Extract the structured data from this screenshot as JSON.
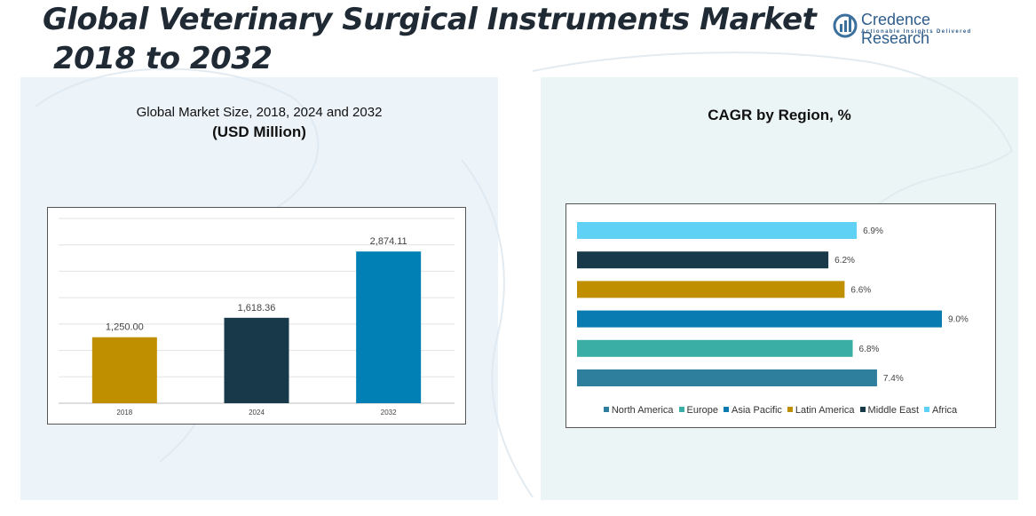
{
  "title_line1": "Global Veterinary Surgical Instruments Market",
  "title_line2": "2018 to 2032",
  "logo": {
    "brand": "Credence Research",
    "tagline": "Actionable Insights Delivered",
    "icon": "logo-icon"
  },
  "left_chart": {
    "subtitle": "Global Market Size, 2018, 2024 and 2032",
    "units": "(USD Million)"
  },
  "right_chart": {
    "title": "CAGR by Region, %"
  },
  "chart_data": [
    {
      "type": "bar",
      "title": "Global Market Size, 2018, 2024 and 2032",
      "ylabel": "(USD Million)",
      "categories": [
        "2018",
        "2024",
        "2032"
      ],
      "values": [
        1250.0,
        1618.36,
        2874.11
      ],
      "labels": [
        "1,250.00",
        "1,618.36",
        "2,874.11"
      ],
      "colors": [
        "#bf8f00",
        "#17394a",
        "#0080b4"
      ],
      "ylim": [
        0,
        3500
      ],
      "grid": true
    },
    {
      "type": "bar",
      "orientation": "horizontal",
      "title": "CAGR by Region, %",
      "categories": [
        "Africa",
        "Middle East",
        "Latin America",
        "Asia Pacific",
        "Europe",
        "North America"
      ],
      "values": [
        6.9,
        6.2,
        6.6,
        9.0,
        6.8,
        7.4
      ],
      "labels": [
        "6.9%",
        "6.2%",
        "6.6%",
        "9.0%",
        "6.8%",
        "7.4%"
      ],
      "colors": [
        "#5fd1f5",
        "#17394a",
        "#bf8f00",
        "#0a7bb0",
        "#3aaea5",
        "#2e7e9e"
      ],
      "xlim": [
        0,
        9.0
      ],
      "legend": "bottom",
      "legend_order": [
        "North America",
        "Europe",
        "Asia Pacific",
        "Latin America",
        "Middle East",
        "Africa"
      ],
      "legend_colors": [
        "#2e7e9e",
        "#3aaea5",
        "#0a7bb0",
        "#bf8f00",
        "#17394a",
        "#5fd1f5"
      ]
    }
  ]
}
